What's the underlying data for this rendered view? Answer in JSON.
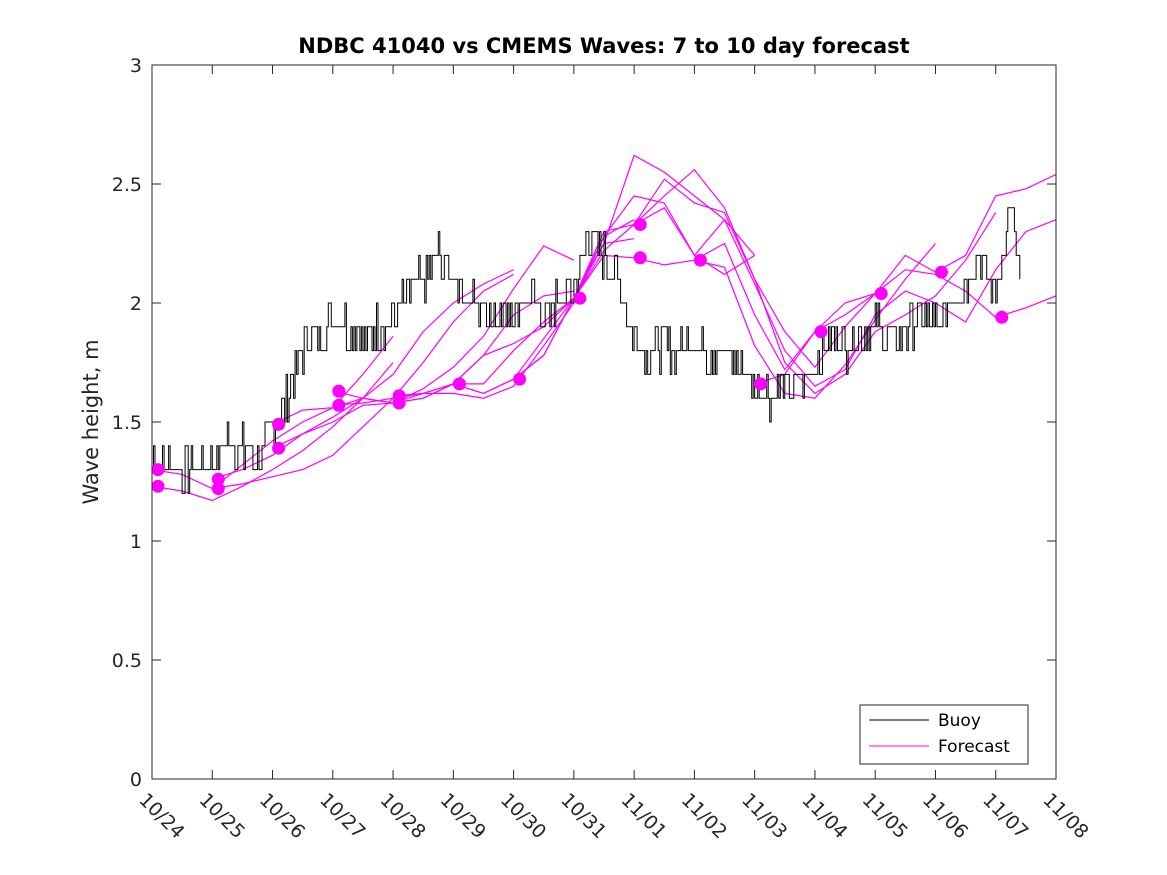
{
  "chart_data": {
    "type": "line",
    "title": "NDBC 41040 vs CMEMS Waves: 7 to 10 day forecast",
    "xlabel": "",
    "ylabel": "Wave height, m",
    "xlim": [
      0,
      15
    ],
    "ylim": [
      0,
      3
    ],
    "grid": false,
    "legend_position": "bottom-right",
    "x_tick_labels": [
      "10/24",
      "10/25",
      "10/26",
      "10/27",
      "10/28",
      "10/29",
      "10/30",
      "10/31",
      "11/01",
      "11/02",
      "11/03",
      "11/04",
      "11/05",
      "11/06",
      "11/07",
      "11/08"
    ],
    "y_ticks": [
      0,
      0.5,
      1,
      1.5,
      2,
      2.5,
      3
    ],
    "y_tick_labels": [
      "0",
      "0.5",
      "1",
      "1.5",
      "2",
      "2.5",
      "3"
    ],
    "colors": {
      "buoy": "#000000",
      "forecast": "#ff00ff"
    },
    "legend": [
      {
        "name": "Buoy",
        "color": "#000000"
      },
      {
        "name": "Forecast",
        "color": "#ff00ff"
      }
    ],
    "buoy": {
      "name": "Buoy",
      "x": [
        0.0,
        0.25,
        0.5,
        0.75,
        1.0,
        1.25,
        1.5,
        1.75,
        2.0,
        2.25,
        2.5,
        2.75,
        3.0,
        3.25,
        3.5,
        3.75,
        4.0,
        4.25,
        4.5,
        4.75,
        5.0,
        5.25,
        5.5,
        5.75,
        6.0,
        6.25,
        6.5,
        6.75,
        7.0,
        7.25,
        7.5,
        7.75,
        8.0,
        8.25,
        8.5,
        8.75,
        9.0,
        9.25,
        9.5,
        9.75,
        10.0,
        10.25,
        10.5,
        10.75,
        11.0,
        11.25,
        11.5,
        11.75,
        12.0,
        12.25,
        12.5,
        12.75,
        13.0,
        13.25,
        13.5,
        13.75,
        14.0,
        14.25,
        14.4
      ],
      "values": [
        1.35,
        1.33,
        1.3,
        1.32,
        1.35,
        1.42,
        1.38,
        1.35,
        1.45,
        1.6,
        1.8,
        1.88,
        1.95,
        1.9,
        1.85,
        1.9,
        1.95,
        2.05,
        2.1,
        2.2,
        2.1,
        2.0,
        1.98,
        1.95,
        1.98,
        2.0,
        1.95,
        2.0,
        2.05,
        2.3,
        2.2,
        2.1,
        1.85,
        1.8,
        1.82,
        1.8,
        1.85,
        1.8,
        1.78,
        1.75,
        1.65,
        1.62,
        1.65,
        1.68,
        1.75,
        1.85,
        1.82,
        1.88,
        1.9,
        1.85,
        1.88,
        1.95,
        1.9,
        2.0,
        2.1,
        2.2,
        2.05,
        2.4,
        2.1
      ],
      "jitter": 0.08
    },
    "forecast_runs": [
      {
        "name": "Forecast",
        "x": [
          0,
          0.5,
          1,
          1.5,
          2,
          2.5,
          3,
          3.5,
          4
        ],
        "values": [
          1.3,
          1.28,
          1.22,
          1.32,
          1.42,
          1.5,
          1.56,
          1.7,
          1.86
        ]
      },
      {
        "name": "Forecast",
        "x": [
          0,
          0.5,
          1,
          1.5,
          2,
          2.5,
          3,
          3.5,
          4
        ],
        "values": [
          1.23,
          1.21,
          1.17,
          1.23,
          1.3,
          1.38,
          1.48,
          1.6,
          1.75
        ]
      },
      {
        "name": "Forecast",
        "x": [
          1,
          1.5,
          2,
          2.5,
          3,
          3.5,
          4,
          4.5,
          5,
          5.5,
          6
        ],
        "values": [
          1.26,
          1.3,
          1.36,
          1.45,
          1.52,
          1.6,
          1.7,
          1.88,
          2.0,
          2.08,
          2.14
        ]
      },
      {
        "name": "Forecast",
        "x": [
          1,
          1.5,
          2,
          2.5,
          3,
          3.5,
          4,
          4.5,
          5,
          5.5,
          6
        ],
        "values": [
          1.22,
          1.24,
          1.27,
          1.3,
          1.36,
          1.48,
          1.6,
          1.75,
          1.92,
          2.05,
          2.12
        ]
      },
      {
        "name": "Forecast",
        "x": [
          2,
          2.5,
          3,
          3.5,
          4,
          4.5,
          5,
          5.5,
          6,
          6.5,
          7
        ],
        "values": [
          1.49,
          1.55,
          1.56,
          1.6,
          1.58,
          1.62,
          1.66,
          1.78,
          1.95,
          2.03,
          2.05
        ]
      },
      {
        "name": "Forecast",
        "x": [
          2,
          2.5,
          3,
          3.5,
          4,
          4.5,
          5,
          5.5,
          6,
          6.5,
          7
        ],
        "values": [
          1.39,
          1.45,
          1.5,
          1.57,
          1.58,
          1.64,
          1.73,
          1.86,
          2.06,
          2.24,
          2.18
        ]
      },
      {
        "name": "Forecast",
        "x": [
          3,
          3.5,
          4,
          4.5,
          5,
          5.5,
          6,
          6.5,
          7,
          7.5,
          8
        ],
        "values": [
          1.63,
          1.6,
          1.58,
          1.6,
          1.66,
          1.66,
          1.8,
          1.92,
          2.02,
          2.25,
          2.27
        ]
      },
      {
        "name": "Forecast",
        "x": [
          3,
          3.5,
          4,
          4.5,
          5,
          5.5,
          6,
          6.5,
          7,
          7.5,
          8
        ],
        "values": [
          1.57,
          1.58,
          1.6,
          1.62,
          1.62,
          1.6,
          1.65,
          1.82,
          2.0,
          2.28,
          2.35
        ]
      },
      {
        "name": "Forecast",
        "x": [
          4,
          4.5,
          5,
          5.5,
          6,
          6.5,
          7,
          7.5,
          8,
          8.5,
          9,
          9.5,
          10
        ],
        "values": [
          1.61,
          1.62,
          1.66,
          1.78,
          1.83,
          1.9,
          2.02,
          2.25,
          2.62,
          2.55,
          2.45,
          2.35,
          2.2
        ]
      },
      {
        "name": "Forecast",
        "x": [
          4,
          4.5,
          5,
          5.5,
          6,
          6.5,
          7,
          7.5,
          8,
          8.5,
          9,
          9.5,
          10
        ],
        "values": [
          1.58,
          1.6,
          1.66,
          1.62,
          1.68,
          1.85,
          2.02,
          2.28,
          2.45,
          2.42,
          2.2,
          2.12,
          2.2
        ]
      },
      {
        "name": "Forecast",
        "x": [
          5,
          5.5,
          6,
          6.5,
          7,
          7.5,
          8,
          8.5,
          9,
          9.5,
          10,
          10.5,
          11,
          11.5,
          12
        ],
        "values": [
          1.66,
          1.62,
          1.68,
          1.78,
          2.02,
          2.3,
          2.33,
          2.52,
          2.42,
          2.38,
          2.1,
          1.88,
          1.73,
          1.9,
          2.04
        ]
      },
      {
        "name": "Forecast",
        "x": [
          6,
          6.5,
          7,
          7.5,
          8,
          8.5,
          9,
          9.5,
          10,
          10.5,
          11,
          11.5,
          12,
          12.5,
          13
        ],
        "values": [
          1.68,
          1.78,
          2.02,
          2.2,
          2.19,
          2.16,
          2.18,
          2.15,
          1.82,
          1.62,
          1.6,
          1.74,
          1.93,
          2.1,
          2.25
        ]
      },
      {
        "name": "Forecast",
        "x": [
          7,
          7.5,
          8,
          8.5,
          9,
          9.5,
          10,
          10.5,
          11,
          11.5,
          12,
          12.5,
          13,
          13.5,
          14
        ],
        "values": [
          2.02,
          2.22,
          2.33,
          2.45,
          2.56,
          2.4,
          2.1,
          1.75,
          1.62,
          1.7,
          1.88,
          1.95,
          2.03,
          2.18,
          2.38
        ]
      },
      {
        "name": "Forecast",
        "x": [
          8,
          8.5,
          9,
          9.5,
          10,
          10.5,
          11,
          11.5,
          12,
          12.5,
          13,
          13.5,
          14,
          14.5,
          15
        ],
        "values": [
          2.33,
          2.4,
          2.2,
          2.35,
          2.08,
          1.8,
          1.65,
          1.72,
          1.95,
          2.05,
          2.0,
          1.92,
          2.14,
          2.3,
          2.35
        ]
      },
      {
        "name": "Forecast",
        "x": [
          9,
          9.5,
          10,
          10.5,
          11,
          11.5,
          12,
          12.5,
          13,
          13.5,
          14,
          14.5,
          15
        ],
        "values": [
          2.18,
          2.25,
          1.95,
          1.72,
          1.88,
          1.95,
          2.04,
          2.14,
          2.12,
          2.05,
          1.94,
          1.98,
          2.03
        ]
      },
      {
        "name": "Forecast",
        "x": [
          10,
          10.5,
          11,
          11.5,
          12,
          12.5,
          13,
          13.5,
          14,
          14.5,
          15
        ],
        "values": [
          1.66,
          1.7,
          1.88,
          2.0,
          2.04,
          2.2,
          2.13,
          2.2,
          2.45,
          2.48,
          2.54
        ]
      }
    ],
    "forecast_markers": {
      "x": [
        0.1,
        0.1,
        1.1,
        1.1,
        2.1,
        2.1,
        3.1,
        3.1,
        4.1,
        4.1,
        5.1,
        6.1,
        7.1,
        8.1,
        8.1,
        9.1,
        10.1,
        11.1,
        12.1,
        13.1,
        14.1
      ],
      "values": [
        1.3,
        1.23,
        1.26,
        1.22,
        1.49,
        1.39,
        1.63,
        1.57,
        1.61,
        1.58,
        1.66,
        1.68,
        2.02,
        2.33,
        2.19,
        2.18,
        1.66,
        1.88,
        2.04,
        2.13,
        1.94
      ]
    }
  }
}
